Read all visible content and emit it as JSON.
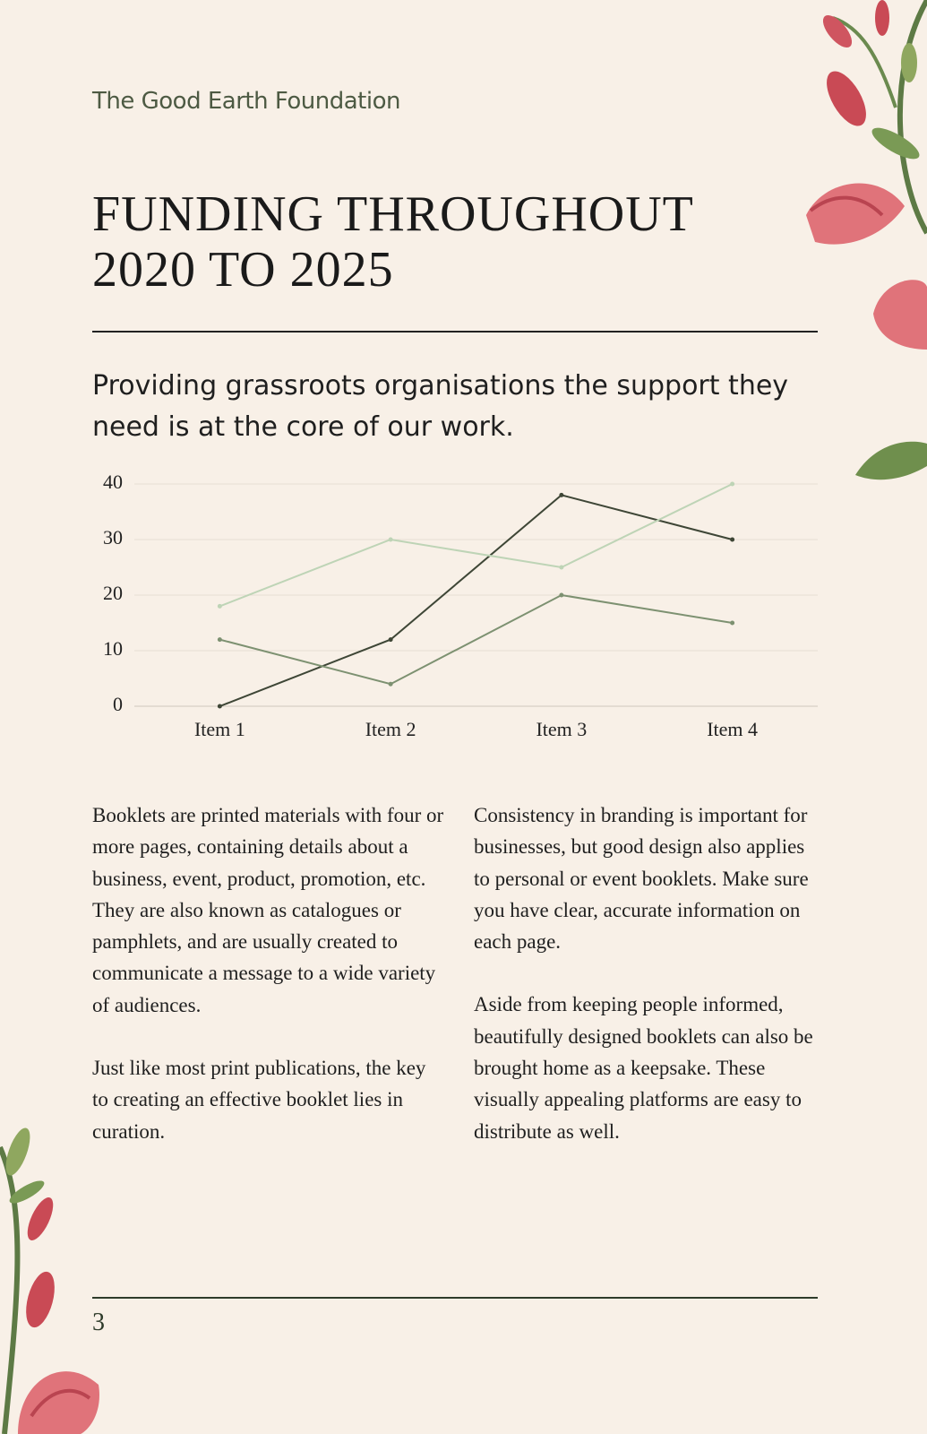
{
  "header": {
    "organisation": "The Good Earth Foundation"
  },
  "title": "FUNDING THROUGHOUT 2020 TO 2025",
  "subtitle": "Providing grassroots organisations the support they need is at the core of our work.",
  "chart_data": {
    "type": "line",
    "categories": [
      "Item 1",
      "Item 2",
      "Item 3",
      "Item 4"
    ],
    "series": [
      {
        "color": "#3e4636",
        "values": [
          0,
          12,
          38,
          30
        ]
      },
      {
        "color": "#7d9171",
        "values": [
          12,
          4,
          20,
          15
        ]
      },
      {
        "color": "#bed4b6",
        "values": [
          18,
          30,
          25,
          40
        ]
      }
    ],
    "ylim": [
      0,
      40
    ],
    "yticks": [
      0,
      10,
      20,
      30,
      40
    ],
    "grid": true
  },
  "columns": [
    [
      "Booklets are printed materials with four or more pages, containing details about a business, event, product, promotion, etc. They are also known as catalogues or pamphlets, and are usually created to communicate a message to a wide variety of audiences.",
      "Just like most print publications, the key to creating an effective booklet lies in curation."
    ],
    [
      "Consistency in branding is important for businesses, but good design also applies to personal or event booklets. Make sure you have clear, accurate information on each page.",
      "Aside from keeping people informed, beautifully designed booklets can also be brought home as a keepsake. These visually appealing platforms are easy to distribute as well."
    ]
  ],
  "footer": {
    "page_number": "3"
  }
}
